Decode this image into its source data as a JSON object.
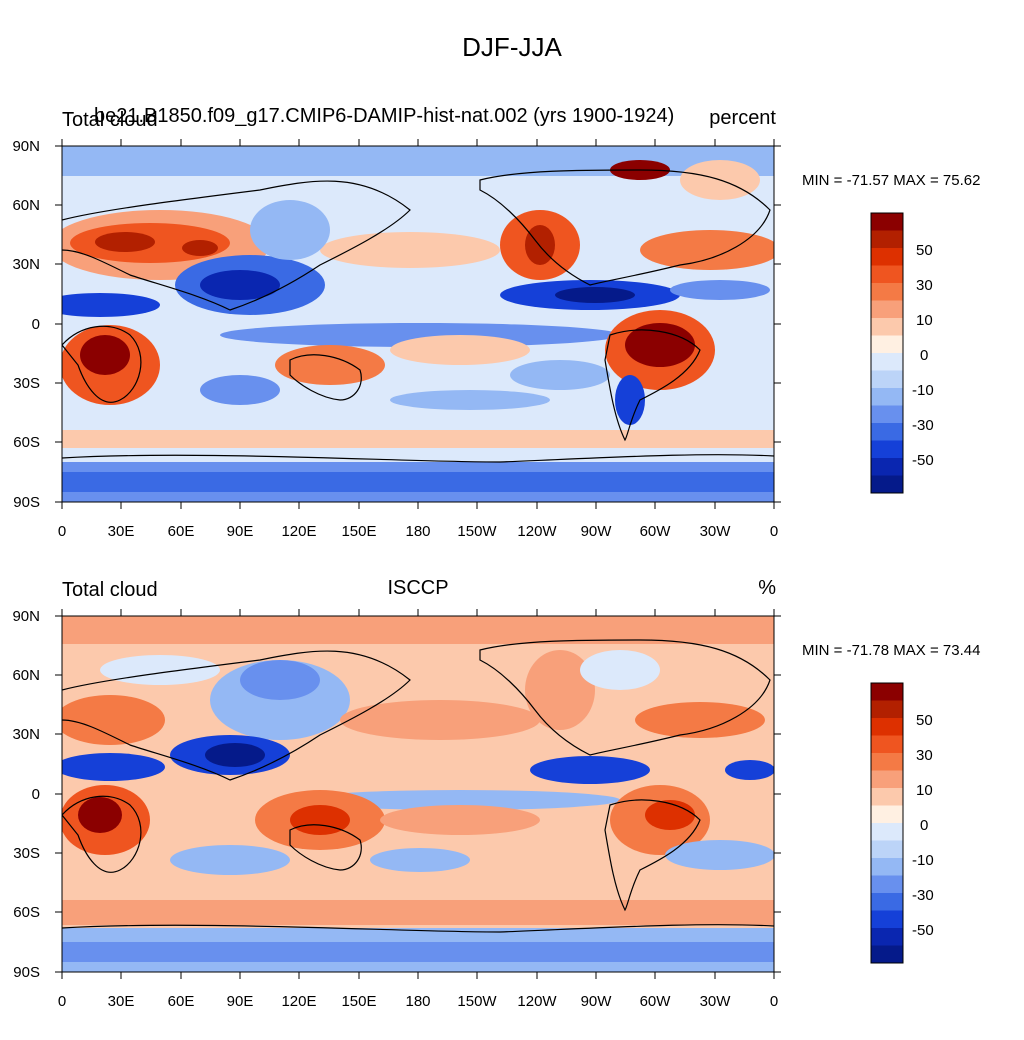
{
  "title": "DJF-JJA",
  "panels": [
    {
      "left_label": "Total cloud",
      "center_label": "be21.B1850.f09_g17.CMIP6-DAMIP-hist-nat.002 (yrs 1900-1924)",
      "right_label": "percent",
      "min_max": "MIN = -71.57 MAX =  75.62"
    },
    {
      "left_label": "Total cloud",
      "center_label": "ISCCP",
      "right_label": "%",
      "min_max": "MIN = -71.78 MAX =  73.44"
    }
  ],
  "lat_ticks": [
    "90N",
    "60N",
    "30N",
    "0",
    "30S",
    "60S",
    "90S"
  ],
  "lon_ticks": [
    "0",
    "30E",
    "60E",
    "90E",
    "120E",
    "150E",
    "180",
    "150W",
    "120W",
    "90W",
    "60W",
    "30W",
    "0"
  ],
  "colorbar": {
    "colors": [
      "#8b0000",
      "#b22000",
      "#dd3000",
      "#ef5520",
      "#f47a45",
      "#f8a07a",
      "#fcc9ac",
      "#fff0e2",
      "#dce9fb",
      "#bcd4f8",
      "#94b8f4",
      "#6890ee",
      "#3a6ae4",
      "#1540d8",
      "#0a26b0",
      "#051a8a"
    ],
    "labels": [
      "50",
      "30",
      "10",
      "0",
      "-10",
      "-30",
      "-50"
    ]
  }
}
